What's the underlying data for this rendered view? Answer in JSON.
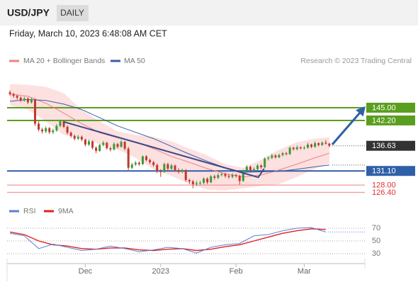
{
  "chart_data": [
    {
      "type": "candlestick",
      "title": "USD/JPY",
      "timeframe": "DAILY",
      "subtitle": "Friday, March 10, 2023 6:48:08 AM CET",
      "source": "Research © 2023 Trading Central",
      "up_color": "#3a9a3a",
      "down_color": "#c0392b",
      "xlim": [
        -0.8,
        98.9
      ],
      "ylim": [
        124.28,
        153.1
      ],
      "ohlc": [
        [
          148.4,
          148.8,
          147.6,
          148.0
        ],
        [
          148.0,
          148.3,
          147.2,
          147.6
        ],
        [
          147.6,
          147.9,
          146.8,
          147.2
        ],
        [
          147.2,
          147.5,
          146.2,
          146.6
        ],
        [
          146.6,
          147.4,
          146.3,
          147.0
        ],
        [
          147.0,
          147.3,
          145.8,
          146.2
        ],
        [
          146.2,
          147.2,
          145.9,
          146.8
        ],
        [
          146.8,
          147.0,
          141.0,
          141.5
        ],
        [
          141.5,
          142.0,
          139.8,
          140.2
        ],
        [
          140.2,
          140.6,
          139.3,
          139.8
        ],
        [
          139.8,
          140.9,
          139.4,
          140.5
        ],
        [
          140.5,
          140.8,
          139.2,
          139.6
        ],
        [
          139.6,
          140.4,
          139.2,
          140.0
        ],
        [
          140.0,
          141.4,
          139.7,
          141.0
        ],
        [
          141.0,
          142.3,
          140.7,
          142.0
        ],
        [
          142.0,
          142.2,
          140.5,
          140.8
        ],
        [
          140.8,
          141.1,
          139.1,
          139.5
        ],
        [
          139.5,
          139.8,
          138.4,
          138.8
        ],
        [
          138.8,
          139.1,
          137.8,
          138.2
        ],
        [
          138.2,
          139.0,
          137.9,
          138.6
        ],
        [
          138.6,
          138.9,
          137.6,
          138.0
        ],
        [
          138.0,
          138.2,
          136.5,
          136.9
        ],
        [
          136.9,
          138.0,
          136.6,
          137.6
        ],
        [
          137.6,
          137.8,
          135.8,
          136.2
        ],
        [
          136.2,
          136.5,
          135.0,
          135.5
        ],
        [
          135.5,
          137.1,
          135.3,
          136.8
        ],
        [
          136.8,
          137.7,
          136.5,
          137.3
        ],
        [
          137.3,
          137.5,
          135.8,
          136.1
        ],
        [
          136.1,
          136.4,
          135.4,
          135.8
        ],
        [
          135.8,
          137.4,
          135.6,
          137.0
        ],
        [
          137.0,
          137.3,
          136.0,
          136.4
        ],
        [
          136.4,
          137.9,
          136.2,
          137.5
        ],
        [
          137.5,
          137.7,
          135.6,
          136.0
        ],
        [
          136.0,
          136.4,
          131.3,
          131.8
        ],
        [
          131.8,
          132.9,
          131.5,
          132.5
        ],
        [
          132.5,
          133.3,
          132.2,
          132.9
        ],
        [
          132.9,
          133.2,
          132.2,
          132.6
        ],
        [
          132.6,
          134.5,
          132.4,
          134.3
        ],
        [
          134.3,
          134.6,
          133.2,
          133.5
        ],
        [
          133.5,
          133.8,
          132.6,
          133.0
        ],
        [
          133.0,
          133.3,
          132.0,
          132.4
        ],
        [
          132.4,
          132.7,
          130.6,
          131.0
        ],
        [
          131.0,
          131.5,
          129.8,
          130.9
        ],
        [
          130.9,
          132.9,
          130.7,
          132.6
        ],
        [
          132.6,
          132.9,
          131.2,
          131.6
        ],
        [
          131.6,
          132.7,
          131.3,
          132.3
        ],
        [
          132.3,
          132.5,
          130.9,
          131.3
        ],
        [
          131.3,
          131.7,
          130.5,
          130.9
        ],
        [
          130.9,
          131.6,
          130.6,
          131.3
        ],
        [
          131.3,
          131.5,
          128.7,
          129.1
        ],
        [
          129.1,
          129.4,
          128.2,
          128.8
        ],
        [
          128.8,
          129.1,
          127.3,
          128.2
        ],
        [
          128.2,
          128.9,
          127.8,
          128.4
        ],
        [
          128.4,
          128.9,
          128.0,
          128.5
        ],
        [
          128.5,
          129.7,
          128.2,
          129.4
        ],
        [
          129.4,
          129.7,
          128.2,
          128.6
        ],
        [
          128.6,
          130.2,
          128.4,
          129.9
        ],
        [
          129.9,
          130.3,
          129.2,
          129.6
        ],
        [
          129.6,
          130.6,
          129.3,
          130.2
        ],
        [
          130.2,
          130.7,
          129.9,
          130.4
        ],
        [
          130.4,
          130.7,
          129.6,
          130.0
        ],
        [
          130.0,
          130.4,
          129.4,
          129.8
        ],
        [
          129.8,
          130.6,
          129.5,
          130.2
        ],
        [
          130.2,
          130.5,
          129.6,
          130.0
        ],
        [
          130.0,
          130.3,
          128.1,
          128.9
        ],
        [
          128.9,
          131.4,
          128.7,
          131.2
        ],
        [
          131.2,
          132.4,
          130.9,
          132.0
        ],
        [
          132.0,
          132.3,
          130.9,
          131.3
        ],
        [
          131.3,
          131.9,
          130.9,
          131.5
        ],
        [
          131.5,
          132.6,
          131.2,
          132.3
        ],
        [
          132.3,
          132.6,
          131.5,
          131.9
        ],
        [
          131.9,
          134.1,
          131.7,
          133.8
        ],
        [
          133.8,
          134.4,
          133.4,
          134.0
        ],
        [
          134.0,
          134.9,
          133.7,
          134.5
        ],
        [
          134.5,
          134.8,
          133.8,
          134.1
        ],
        [
          134.1,
          134.9,
          133.9,
          134.6
        ],
        [
          134.6,
          135.3,
          134.3,
          135.0
        ],
        [
          135.0,
          135.3,
          134.5,
          134.8
        ],
        [
          134.8,
          136.5,
          134.6,
          136.2
        ],
        [
          136.2,
          136.4,
          135.6,
          135.9
        ],
        [
          135.9,
          136.7,
          135.6,
          136.3
        ],
        [
          136.3,
          136.5,
          135.8,
          136.1
        ],
        [
          136.1,
          136.6,
          135.8,
          136.2
        ],
        [
          136.2,
          137.3,
          136.0,
          136.9
        ],
        [
          136.9,
          137.1,
          136.1,
          136.4
        ],
        [
          136.4,
          137.6,
          136.2,
          137.2
        ],
        [
          137.2,
          137.4,
          136.5,
          136.8
        ],
        [
          136.8,
          137.6,
          136.6,
          137.3
        ],
        [
          137.3,
          137.9,
          136.9,
          137.1
        ],
        [
          137.1,
          137.3,
          136.3,
          136.63
        ]
      ],
      "ma_x": [
        0,
        5,
        10,
        15,
        20,
        25,
        30,
        35,
        40,
        45,
        50,
        55,
        60,
        65,
        70,
        75,
        80,
        85,
        89
      ],
      "series": [
        {
          "name": "MA 20 + Bollinger Bands",
          "color": "#f08080",
          "band_color": "#fde0e0",
          "values": [
            148.0,
            147.5,
            146.0,
            143.8,
            141.5,
            139.5,
            138.4,
            137.5,
            136.0,
            134.3,
            133.0,
            131.6,
            130.5,
            129.8,
            130.2,
            131.3,
            132.6,
            134.0,
            135.0
          ],
          "upper": [
            150.2,
            150.0,
            149.6,
            148.2,
            144.5,
            142.0,
            139.8,
            139.0,
            138.6,
            137.6,
            136.0,
            134.5,
            132.6,
            131.8,
            133.5,
            135.8,
            137.4,
            138.2,
            138.5
          ],
          "lower": [
            145.5,
            144.6,
            142.0,
            139.0,
            138.3,
            137.0,
            135.8,
            134.0,
            131.5,
            130.0,
            128.3,
            127.0,
            126.8,
            127.3,
            127.8,
            128.2,
            129.8,
            131.6,
            132.8
          ]
        },
        {
          "name": "MA 50",
          "color": "#3a5ea8",
          "values": [
            146.4,
            146.8,
            146.6,
            145.8,
            144.6,
            142.8,
            141.0,
            139.6,
            138.2,
            136.5,
            134.8,
            133.2,
            131.8,
            130.8,
            130.9,
            131.0,
            131.5,
            132.0,
            132.4
          ]
        }
      ],
      "trendline": {
        "color": "#3a4a8a",
        "x": [
          15,
          69.2,
          70.8
        ],
        "y": [
          141.9,
          129.7,
          131.6
        ]
      },
      "forecast": {
        "color": "#2f5fa8",
        "x": [
          89.8,
          98.3
        ],
        "y": [
          136.9,
          144.6
        ]
      },
      "last_price": 136.63,
      "levels": [
        {
          "value": 145,
          "label": "145.00",
          "color": "#5a9e1f",
          "style": "box"
        },
        {
          "value": 142.2,
          "label": "142.20",
          "color": "#5a9e1f",
          "style": "box"
        },
        {
          "value": 131.1,
          "label": "131.10",
          "color": "#2f5fa8",
          "style": "box"
        },
        {
          "value": 128,
          "label": "128.00",
          "color": "#f08080",
          "style": "text"
        },
        {
          "value": 126.4,
          "label": "126.40",
          "color": "#f08080",
          "style": "text"
        }
      ]
    },
    {
      "type": "line",
      "xlim": [
        -0.8,
        98.9
      ],
      "ylim": [
        14.4,
        88.9
      ],
      "yticks": [
        30,
        50,
        70
      ],
      "xticks": [
        {
          "value": 21,
          "label": "Dec"
        },
        {
          "value": 42,
          "label": "2023"
        },
        {
          "value": 63,
          "label": "Feb"
        },
        {
          "value": 82,
          "label": "Mar"
        }
      ],
      "x": [
        0,
        4,
        8,
        12,
        16,
        20,
        24,
        28,
        32,
        36,
        40,
        44,
        48,
        52,
        56,
        60,
        64,
        68,
        72,
        76,
        80,
        84,
        88
      ],
      "series": [
        {
          "name": "RSI",
          "color": "#5b7fd6",
          "values": [
            62,
            58,
            38,
            45,
            40,
            35,
            37,
            42,
            38,
            33,
            36,
            40,
            38,
            31,
            40,
            44,
            46,
            58,
            60,
            66,
            70,
            71,
            64
          ]
        },
        {
          "name": "9MA",
          "color": "#e02020",
          "values": [
            64,
            60,
            50,
            44,
            42,
            38,
            37,
            39,
            39,
            36,
            35,
            37,
            38,
            35,
            37,
            41,
            44,
            50,
            56,
            62,
            66,
            69,
            68
          ]
        }
      ]
    }
  ]
}
